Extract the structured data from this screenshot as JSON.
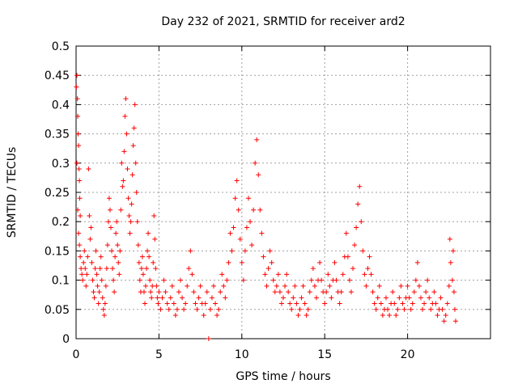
{
  "chart_data": {
    "type": "scatter",
    "title": "Day 232 of 2021, SRMTID for receiver ard2",
    "xlabel": "GPS time / hours",
    "ylabel": "SRMTID / TECUs",
    "xlim": [
      0,
      25
    ],
    "ylim": [
      0,
      0.5
    ],
    "x_ticks": [
      0,
      5,
      10,
      15,
      20
    ],
    "x_tick_labels": [
      "0",
      "5",
      "10",
      "15",
      "20"
    ],
    "y_ticks": [
      0,
      0.05,
      0.1,
      0.15,
      0.2,
      0.25,
      0.3,
      0.35,
      0.4,
      0.45,
      0.5
    ],
    "y_tick_labels": [
      "0",
      "0.05",
      "0.1",
      "0.15",
      "0.2",
      "0.25",
      "0.3",
      "0.35",
      "0.4",
      "0.45",
      "0.5"
    ],
    "grid": true,
    "marker": "+",
    "color": "#ff0000",
    "series": [
      {
        "name": "SRMTID",
        "points": [
          [
            0.02,
            0.43
          ],
          [
            0.05,
            0.45
          ],
          [
            0.08,
            0.41
          ],
          [
            0.1,
            0.38
          ],
          [
            0.12,
            0.35
          ],
          [
            0.15,
            0.33
          ],
          [
            0.18,
            0.29
          ],
          [
            0.2,
            0.27
          ],
          [
            0.22,
            0.24
          ],
          [
            0.25,
            0.21
          ],
          [
            0.05,
            0.3
          ],
          [
            0.1,
            0.22
          ],
          [
            0.15,
            0.18
          ],
          [
            0.2,
            0.16
          ],
          [
            0.25,
            0.14
          ],
          [
            0.3,
            0.12
          ],
          [
            0.35,
            0.11
          ],
          [
            0.4,
            0.1
          ],
          [
            0.45,
            0.13
          ],
          [
            0.5,
            0.15
          ],
          [
            0.55,
            0.12
          ],
          [
            0.6,
            0.09
          ],
          [
            0.65,
            0.11
          ],
          [
            0.7,
            0.14
          ],
          [
            0.75,
            0.29
          ],
          [
            0.8,
            0.21
          ],
          [
            0.85,
            0.17
          ],
          [
            0.9,
            0.19
          ],
          [
            0.95,
            0.13
          ],
          [
            1.0,
            0.1
          ],
          [
            1.05,
            0.08
          ],
          [
            1.1,
            0.07
          ],
          [
            1.15,
            0.12
          ],
          [
            1.2,
            0.15
          ],
          [
            1.25,
            0.11
          ],
          [
            1.3,
            0.09
          ],
          [
            1.35,
            0.06
          ],
          [
            1.4,
            0.08
          ],
          [
            1.45,
            0.12
          ],
          [
            1.5,
            0.14
          ],
          [
            1.55,
            0.1
          ],
          [
            1.6,
            0.07
          ],
          [
            1.65,
            0.05
          ],
          [
            1.7,
            0.04
          ],
          [
            1.75,
            0.06
          ],
          [
            1.8,
            0.09
          ],
          [
            1.85,
            0.12
          ],
          [
            1.9,
            0.16
          ],
          [
            1.95,
            0.2
          ],
          [
            2.0,
            0.24
          ],
          [
            2.05,
            0.22
          ],
          [
            2.1,
            0.19
          ],
          [
            2.15,
            0.15
          ],
          [
            2.2,
            0.12
          ],
          [
            2.25,
            0.1
          ],
          [
            2.3,
            0.08
          ],
          [
            2.35,
            0.14
          ],
          [
            2.4,
            0.18
          ],
          [
            2.45,
            0.2
          ],
          [
            2.5,
            0.16
          ],
          [
            2.55,
            0.13
          ],
          [
            2.6,
            0.11
          ],
          [
            2.65,
            0.15
          ],
          [
            2.7,
            0.22
          ],
          [
            2.75,
            0.3
          ],
          [
            2.8,
            0.26
          ],
          [
            2.85,
            0.27
          ],
          [
            2.9,
            0.32
          ],
          [
            2.95,
            0.38
          ],
          [
            3.0,
            0.41
          ],
          [
            3.05,
            0.35
          ],
          [
            3.1,
            0.29
          ],
          [
            3.15,
            0.24
          ],
          [
            3.2,
            0.21
          ],
          [
            3.25,
            0.18
          ],
          [
            3.3,
            0.2
          ],
          [
            3.35,
            0.23
          ],
          [
            3.4,
            0.28
          ],
          [
            3.45,
            0.33
          ],
          [
            3.5,
            0.36
          ],
          [
            3.55,
            0.4
          ],
          [
            3.6,
            0.3
          ],
          [
            3.65,
            0.25
          ],
          [
            3.7,
            0.2
          ],
          [
            3.75,
            0.16
          ],
          [
            3.8,
            0.13
          ],
          [
            3.85,
            0.1
          ],
          [
            3.9,
            0.08
          ],
          [
            3.95,
            0.12
          ],
          [
            4.0,
            0.14
          ],
          [
            4.05,
            0.11
          ],
          [
            4.1,
            0.08
          ],
          [
            4.15,
            0.06
          ],
          [
            4.2,
            0.09
          ],
          [
            4.25,
            0.12
          ],
          [
            4.3,
            0.15
          ],
          [
            4.35,
            0.18
          ],
          [
            4.4,
            0.14
          ],
          [
            4.45,
            0.1
          ],
          [
            4.5,
            0.08
          ],
          [
            4.55,
            0.07
          ],
          [
            4.6,
            0.09
          ],
          [
            4.65,
            0.13
          ],
          [
            4.7,
            0.21
          ],
          [
            4.75,
            0.17
          ],
          [
            4.8,
            0.12
          ],
          [
            4.85,
            0.09
          ],
          [
            4.9,
            0.07
          ],
          [
            4.95,
            0.06
          ],
          [
            5.0,
            0.08
          ],
          [
            5.1,
            0.05
          ],
          [
            5.2,
            0.07
          ],
          [
            5.3,
            0.1
          ],
          [
            5.4,
            0.08
          ],
          [
            5.5,
            0.06
          ],
          [
            5.6,
            0.05
          ],
          [
            5.7,
            0.07
          ],
          [
            5.8,
            0.09
          ],
          [
            5.9,
            0.06
          ],
          [
            6.0,
            0.04
          ],
          [
            6.1,
            0.05
          ],
          [
            6.2,
            0.08
          ],
          [
            6.3,
            0.1
          ],
          [
            6.4,
            0.07
          ],
          [
            6.5,
            0.05
          ],
          [
            6.6,
            0.06
          ],
          [
            6.7,
            0.09
          ],
          [
            6.8,
            0.12
          ],
          [
            6.9,
            0.15
          ],
          [
            7.0,
            0.11
          ],
          [
            7.1,
            0.08
          ],
          [
            7.2,
            0.06
          ],
          [
            7.3,
            0.05
          ],
          [
            7.4,
            0.07
          ],
          [
            7.5,
            0.09
          ],
          [
            7.6,
            0.06
          ],
          [
            7.7,
            0.04
          ],
          [
            7.8,
            0.06
          ],
          [
            7.9,
            0.08
          ],
          [
            8.0,
            0.0
          ],
          [
            8.1,
            0.05
          ],
          [
            8.2,
            0.07
          ],
          [
            8.3,
            0.09
          ],
          [
            8.4,
            0.06
          ],
          [
            8.5,
            0.04
          ],
          [
            8.6,
            0.05
          ],
          [
            8.7,
            0.08
          ],
          [
            8.8,
            0.11
          ],
          [
            8.9,
            0.09
          ],
          [
            9.0,
            0.07
          ],
          [
            9.1,
            0.1
          ],
          [
            9.2,
            0.13
          ],
          [
            9.3,
            0.18
          ],
          [
            9.4,
            0.15
          ],
          [
            9.5,
            0.19
          ],
          [
            9.6,
            0.24
          ],
          [
            9.7,
            0.27
          ],
          [
            9.8,
            0.22
          ],
          [
            9.9,
            0.17
          ],
          [
            10.0,
            0.13
          ],
          [
            10.1,
            0.1
          ],
          [
            10.2,
            0.15
          ],
          [
            10.3,
            0.19
          ],
          [
            10.4,
            0.24
          ],
          [
            10.5,
            0.2
          ],
          [
            10.6,
            0.16
          ],
          [
            10.7,
            0.22
          ],
          [
            10.8,
            0.3
          ],
          [
            10.9,
            0.34
          ],
          [
            11.0,
            0.28
          ],
          [
            11.1,
            0.22
          ],
          [
            11.2,
            0.18
          ],
          [
            11.3,
            0.14
          ],
          [
            11.4,
            0.11
          ],
          [
            11.5,
            0.09
          ],
          [
            11.6,
            0.12
          ],
          [
            11.7,
            0.15
          ],
          [
            11.8,
            0.13
          ],
          [
            11.9,
            0.1
          ],
          [
            12.0,
            0.08
          ],
          [
            12.1,
            0.09
          ],
          [
            12.2,
            0.11
          ],
          [
            12.3,
            0.08
          ],
          [
            12.4,
            0.06
          ],
          [
            12.5,
            0.07
          ],
          [
            12.6,
            0.09
          ],
          [
            12.7,
            0.11
          ],
          [
            12.8,
            0.08
          ],
          [
            12.9,
            0.06
          ],
          [
            13.0,
            0.05
          ],
          [
            13.1,
            0.07
          ],
          [
            13.2,
            0.09
          ],
          [
            13.3,
            0.06
          ],
          [
            13.4,
            0.04
          ],
          [
            13.5,
            0.05
          ],
          [
            13.6,
            0.07
          ],
          [
            13.7,
            0.09
          ],
          [
            13.8,
            0.06
          ],
          [
            13.9,
            0.04
          ],
          [
            14.0,
            0.05
          ],
          [
            14.1,
            0.08
          ],
          [
            14.2,
            0.1
          ],
          [
            14.3,
            0.12
          ],
          [
            14.4,
            0.09
          ],
          [
            14.5,
            0.07
          ],
          [
            14.6,
            0.1
          ],
          [
            14.7,
            0.13
          ],
          [
            14.8,
            0.1
          ],
          [
            14.9,
            0.08
          ],
          [
            15.0,
            0.06
          ],
          [
            15.1,
            0.08
          ],
          [
            15.2,
            0.11
          ],
          [
            15.3,
            0.09
          ],
          [
            15.4,
            0.07
          ],
          [
            15.5,
            0.1
          ],
          [
            15.6,
            0.13
          ],
          [
            15.7,
            0.1
          ],
          [
            15.8,
            0.08
          ],
          [
            15.9,
            0.06
          ],
          [
            16.0,
            0.08
          ],
          [
            16.1,
            0.11
          ],
          [
            16.2,
            0.14
          ],
          [
            16.3,
            0.18
          ],
          [
            16.4,
            0.14
          ],
          [
            16.5,
            0.1
          ],
          [
            16.6,
            0.08
          ],
          [
            16.7,
            0.12
          ],
          [
            16.8,
            0.16
          ],
          [
            16.9,
            0.19
          ],
          [
            17.0,
            0.23
          ],
          [
            17.1,
            0.26
          ],
          [
            17.2,
            0.2
          ],
          [
            17.3,
            0.15
          ],
          [
            17.4,
            0.11
          ],
          [
            17.5,
            0.09
          ],
          [
            17.6,
            0.12
          ],
          [
            17.7,
            0.14
          ],
          [
            17.8,
            0.11
          ],
          [
            17.9,
            0.08
          ],
          [
            18.0,
            0.06
          ],
          [
            18.1,
            0.05
          ],
          [
            18.2,
            0.07
          ],
          [
            18.3,
            0.09
          ],
          [
            18.4,
            0.06
          ],
          [
            18.5,
            0.04
          ],
          [
            18.6,
            0.05
          ],
          [
            18.7,
            0.07
          ],
          [
            18.8,
            0.05
          ],
          [
            18.9,
            0.04
          ],
          [
            19.0,
            0.06
          ],
          [
            19.1,
            0.08
          ],
          [
            19.2,
            0.06
          ],
          [
            19.3,
            0.04
          ],
          [
            19.4,
            0.05
          ],
          [
            19.5,
            0.07
          ],
          [
            19.6,
            0.09
          ],
          [
            19.7,
            0.06
          ],
          [
            19.8,
            0.05
          ],
          [
            19.9,
            0.07
          ],
          [
            20.0,
            0.09
          ],
          [
            20.1,
            0.07
          ],
          [
            20.2,
            0.05
          ],
          [
            20.3,
            0.06
          ],
          [
            20.4,
            0.08
          ],
          [
            20.5,
            0.1
          ],
          [
            20.6,
            0.13
          ],
          [
            20.7,
            0.09
          ],
          [
            20.8,
            0.07
          ],
          [
            20.9,
            0.05
          ],
          [
            21.0,
            0.06
          ],
          [
            21.1,
            0.08
          ],
          [
            21.2,
            0.1
          ],
          [
            21.3,
            0.07
          ],
          [
            21.4,
            0.05
          ],
          [
            21.5,
            0.06
          ],
          [
            21.6,
            0.08
          ],
          [
            21.7,
            0.06
          ],
          [
            21.8,
            0.04
          ],
          [
            21.9,
            0.05
          ],
          [
            22.0,
            0.07
          ],
          [
            22.1,
            0.05
          ],
          [
            22.2,
            0.03
          ],
          [
            22.3,
            0.04
          ],
          [
            22.4,
            0.06
          ],
          [
            22.5,
            0.09
          ],
          [
            22.55,
            0.17
          ],
          [
            22.6,
            0.13
          ],
          [
            22.7,
            0.1
          ],
          [
            22.75,
            0.15
          ],
          [
            22.8,
            0.08
          ],
          [
            22.85,
            0.05
          ],
          [
            22.9,
            0.03
          ]
        ]
      }
    ]
  }
}
